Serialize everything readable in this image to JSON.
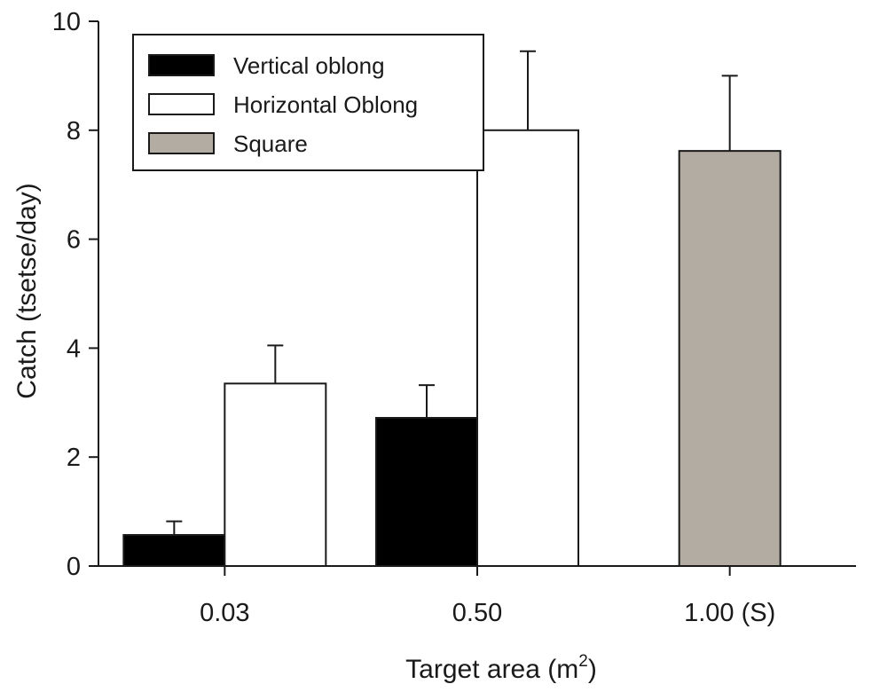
{
  "chart_data": {
    "type": "bar",
    "title": "",
    "xlabel": "Target area (m",
    "xlabel_superscript": "2",
    "xlabel_suffix": ")",
    "ylabel": "Catch (tsetse/day)",
    "ylim": [
      0,
      10
    ],
    "yticks": [
      "0",
      "2",
      "4",
      "6",
      "8",
      "10"
    ],
    "categories": [
      "0.03",
      "0.50",
      "1.00 (S)"
    ],
    "series": [
      {
        "name": "Vertical oblong",
        "color": "#000000",
        "values": [
          0.57,
          2.72,
          null
        ],
        "errors": [
          0.25,
          0.6,
          null
        ]
      },
      {
        "name": "Horizontal Oblong",
        "color": "#ffffff",
        "values": [
          3.35,
          8.0,
          null
        ],
        "errors": [
          0.7,
          1.45,
          null
        ]
      },
      {
        "name": "Square",
        "color": "#b3aca3",
        "values": [
          null,
          null,
          7.62
        ],
        "errors": [
          null,
          null,
          1.38
        ]
      }
    ],
    "legend_position": "top-left",
    "grid": false
  }
}
